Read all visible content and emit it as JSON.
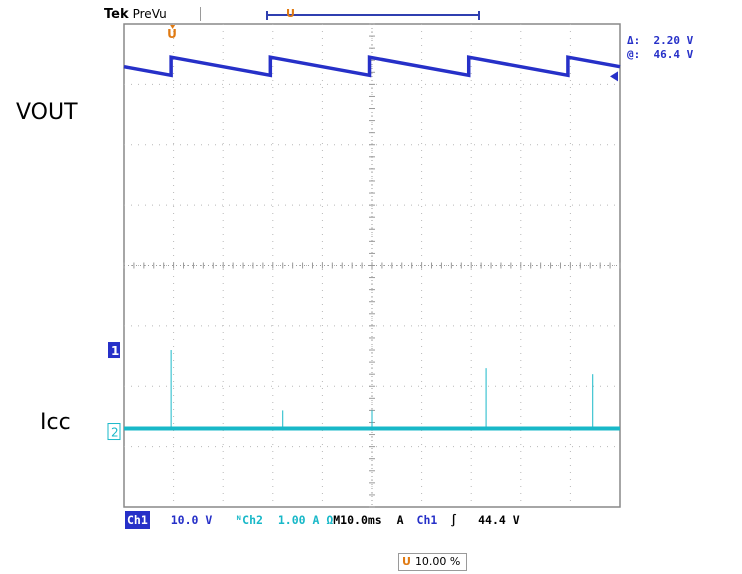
{
  "header": {
    "brand": "Tek",
    "mode": "PreVu",
    "trigger_marker": "U"
  },
  "measurements": {
    "delta_label": "Δ:",
    "delta_value": "2.20 V",
    "at_label": "@:",
    "at_value": "46.4 V"
  },
  "labels": {
    "vout": "VOUT",
    "icc": "Icc",
    "ch1_ground": "1",
    "ch2_ground": "2",
    "trigger_position": "U"
  },
  "status_bar": {
    "ch1_label": "Ch1",
    "ch1_scale": "10.0 V",
    "ch2_label": "Ch2",
    "ch2_scale": "1.00 A Ω",
    "timebase": "M10.0ms",
    "trig_mode": "A",
    "trig_source": "Ch1",
    "trig_slope": "∫",
    "trig_level": "44.4 V"
  },
  "horizontal_position": "10.00 %",
  "colors": {
    "ch1": "#2630c8",
    "ch2": "#18b8c8",
    "trigger": "#e07a12",
    "grid": "#b8b8b8"
  },
  "chart_data": {
    "type": "line",
    "grid_divisions": {
      "horizontal": 10,
      "vertical": 8
    },
    "x_unit": "div",
    "series": [
      {
        "name": "VOUT",
        "channel": "Ch1",
        "style": "sawtooth",
        "period_div": 2,
        "first_reset_div": 0.95,
        "top_div": 3.45,
        "bottom_div": 3.15
      },
      {
        "name": "Icc",
        "channel": "Ch2",
        "style": "flat_with_spikes",
        "level_div": -2.7,
        "spike_x_div": [
          0.95,
          3.2,
          5.0,
          7.3,
          9.45
        ],
        "spike_height_div": [
          1.3,
          0.3,
          0.3,
          1.0,
          0.9
        ]
      }
    ]
  }
}
